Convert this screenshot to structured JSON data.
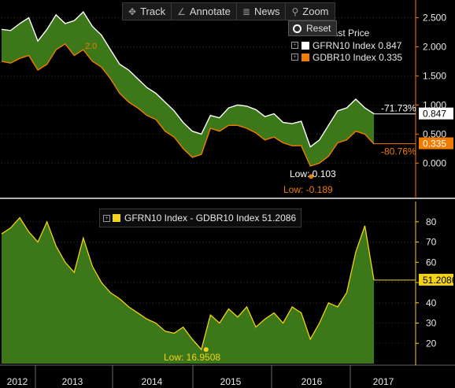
{
  "toolbar": {
    "items": [
      {
        "label": "Track",
        "icon": "crosshair-icon",
        "glyph": "✥"
      },
      {
        "label": "Annotate",
        "icon": "pencil-icon",
        "glyph": "∠"
      },
      {
        "label": "News",
        "icon": "news-icon",
        "glyph": "≣"
      },
      {
        "label": "Zoom",
        "icon": "magnifier-icon",
        "glyph": "⚲"
      }
    ]
  },
  "reset_label": "Reset",
  "colors": {
    "upper_line": "#ffffff",
    "lower_line": "#f07c00",
    "spread_fill": "#3f7d1a",
    "spread_line": "#f2d21b",
    "price_box_white": "#ffffff",
    "price_box_orange": "#f07c00"
  },
  "chart_data": [
    {
      "type": "area",
      "legend_header": "Last Price",
      "legend_placement": "top-right",
      "series": [
        {
          "name": "GFRN10 Index",
          "legend_value": "0.847",
          "last": 0.847,
          "pct_change": "-71.73%",
          "values": [
            2.3,
            2.28,
            2.4,
            2.5,
            2.1,
            2.3,
            2.55,
            2.4,
            2.45,
            2.6,
            2.35,
            2.2,
            1.95,
            1.7,
            1.6,
            1.45,
            1.3,
            1.2,
            1.05,
            0.9,
            0.7,
            0.55,
            0.5,
            0.82,
            0.78,
            0.95,
            1.0,
            0.98,
            0.92,
            0.8,
            0.85,
            0.7,
            0.68,
            0.72,
            0.28,
            0.4,
            0.65,
            0.9,
            0.95,
            1.1,
            0.95,
            0.85
          ]
        },
        {
          "name": "GDBR10 Index",
          "legend_value": "0.335",
          "last": 0.335,
          "pct_change": "-80.76%",
          "values": [
            1.75,
            1.72,
            1.8,
            1.85,
            1.6,
            1.7,
            1.95,
            2.05,
            1.85,
            1.95,
            1.75,
            1.65,
            1.45,
            1.2,
            1.05,
            0.95,
            0.82,
            0.75,
            0.55,
            0.45,
            0.25,
            0.1,
            0.15,
            0.6,
            0.55,
            0.65,
            0.65,
            0.6,
            0.52,
            0.4,
            0.45,
            0.35,
            0.3,
            0.3,
            -0.05,
            0.0,
            0.12,
            0.35,
            0.4,
            0.55,
            0.5,
            0.33
          ]
        }
      ],
      "annotations": [
        {
          "label": "2.0",
          "color": "#f07c00"
        },
        {
          "label": "Low: 0.103",
          "color": "#ffffff"
        },
        {
          "label": "Low: -0.189",
          "color": "#f07c00"
        }
      ],
      "y_ticks": [
        "2.500",
        "2.000",
        "1.500",
        "1.000",
        "0.500",
        "0.000"
      ],
      "ylim": [
        -0.55,
        2.75
      ]
    },
    {
      "type": "area",
      "series": [
        {
          "name": "GFRN10 Index - GDBR10 Index",
          "legend_value": "51.2086",
          "last": 51.208,
          "values": [
            74,
            77,
            82,
            75,
            70,
            80,
            68,
            60,
            55,
            72,
            58,
            50,
            45,
            42,
            38,
            35,
            32,
            30,
            26,
            25,
            28,
            22,
            17,
            34,
            30,
            37,
            33,
            38,
            28,
            32,
            35,
            30,
            38,
            35,
            22,
            30,
            40,
            38,
            45,
            65,
            78,
            51.2
          ]
        }
      ],
      "annotations": [
        {
          "label": "Low: 16.9508",
          "color": "#f2d21b"
        }
      ],
      "y_ticks": [
        "80",
        "70",
        "60",
        "50",
        "40",
        "30",
        "20"
      ],
      "ylim": [
        10,
        90
      ]
    }
  ],
  "x_axis": {
    "labels": [
      "2012",
      "2013",
      "2014",
      "2015",
      "2016",
      "2017"
    ]
  }
}
